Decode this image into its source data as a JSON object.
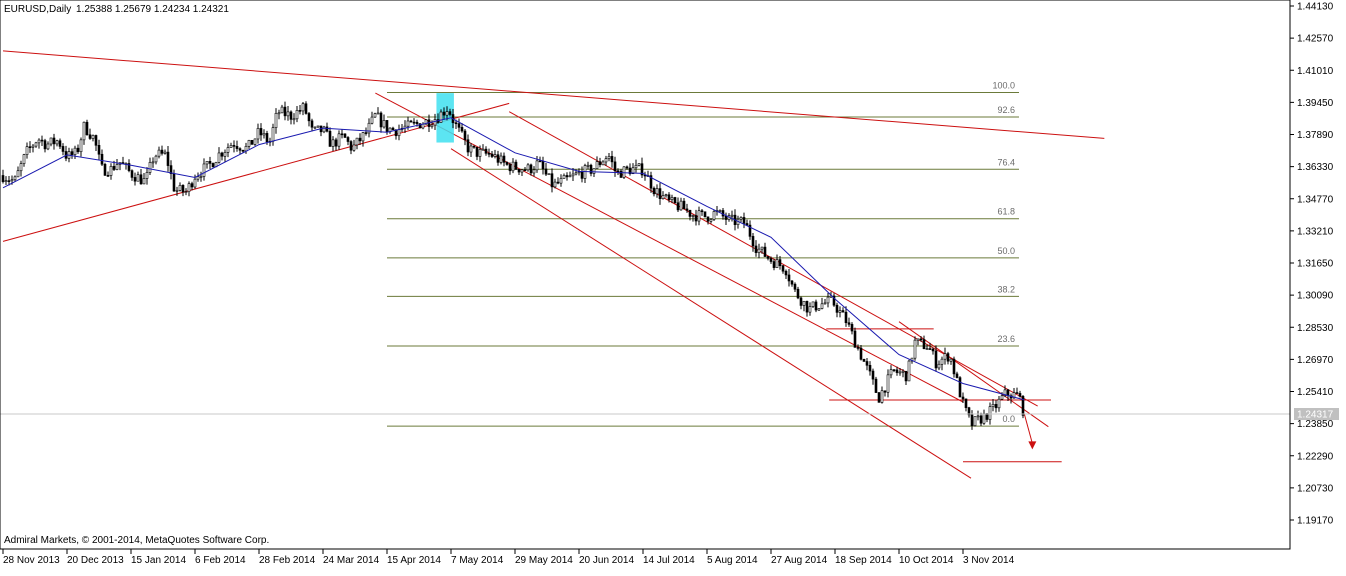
{
  "header": {
    "symbol_timeframe": "EURUSD,Daily",
    "ohlc": "1.25388 1.25679 1.24234 1.24321"
  },
  "footer": {
    "copyright": "Admiral Markets, © 2001-2014, MetaQuotes Software Corp."
  },
  "colors": {
    "background": "#ffffff",
    "frame": "#000000",
    "trendline": "#cc1010",
    "moving_average": "#1a1ab0",
    "fib_level": "#6b7a3a",
    "fib_text": "#6b6b6b",
    "highlight": "#40e0f0",
    "price_label_bg": "#c0c0c0"
  },
  "chart_data": {
    "type": "candlestick",
    "symbol": "EURUSD",
    "timeframe": "Daily",
    "ohlc_last": {
      "open": 1.25388,
      "high": 1.25679,
      "low": 1.24234,
      "close": 1.24321
    },
    "current_price_label": "1.24317",
    "ylim": [
      1.1917,
      1.4413
    ],
    "y_ticks": [
      "1.44130",
      "1.42570",
      "1.41010",
      "1.39450",
      "1.37890",
      "1.36330",
      "1.34770",
      "1.33210",
      "1.31650",
      "1.30090",
      "1.28530",
      "1.26970",
      "1.25410",
      "1.23850",
      "1.22290",
      "1.20730",
      "1.19170"
    ],
    "x_ticks": [
      "28 Nov 2013",
      "20 Dec 2013",
      "15 Jan 2014",
      "6 Feb 2014",
      "28 Feb 2014",
      "24 Mar 2014",
      "15 Apr 2014",
      "7 May 2014",
      "29 May 2014",
      "20 Jun 2014",
      "14 Jul 2014",
      "5 Aug 2014",
      "27 Aug 2014",
      "18 Sep 2014",
      "10 Oct 2014",
      "3 Nov 2014"
    ],
    "close_path": [
      [
        "28 Nov 2013",
        1.359
      ],
      [
        "2 Dec 2013",
        1.356
      ],
      [
        "6 Dec 2013",
        1.37
      ],
      [
        "10 Dec 2013",
        1.377
      ],
      [
        "13 Dec 2013",
        1.374
      ],
      [
        "17 Dec 2013",
        1.376
      ],
      [
        "20 Dec 2013",
        1.368
      ],
      [
        "24 Dec 2013",
        1.37
      ],
      [
        "27 Dec 2013",
        1.383
      ],
      [
        "31 Dec 2013",
        1.377
      ],
      [
        "3 Jan 2014",
        1.362
      ],
      [
        "7 Jan 2014",
        1.362
      ],
      [
        "10 Jan 2014",
        1.366
      ],
      [
        "15 Jan 2014",
        1.36
      ],
      [
        "20 Jan 2014",
        1.356
      ],
      [
        "23 Jan 2014",
        1.369
      ],
      [
        "27 Jan 2014",
        1.369
      ],
      [
        "30 Jan 2014",
        1.352
      ],
      [
        "3 Feb 2014",
        1.351
      ],
      [
        "6 Feb 2014",
        1.359
      ],
      [
        "11 Feb 2014",
        1.364
      ],
      [
        "14 Feb 2014",
        1.369
      ],
      [
        "19 Feb 2014",
        1.375
      ],
      [
        "24 Feb 2014",
        1.372
      ],
      [
        "28 Feb 2014",
        1.38
      ],
      [
        "4 Mar 2014",
        1.375
      ],
      [
        "7 Mar 2014",
        1.39
      ],
      [
        "12 Mar 2014",
        1.388
      ],
      [
        "17 Mar 2014",
        1.392
      ],
      [
        "20 Mar 2014",
        1.38
      ],
      [
        "24 Mar 2014",
        1.381
      ],
      [
        "27 Mar 2014",
        1.374
      ],
      [
        "31 Mar 2014",
        1.378
      ],
      [
        "3 Apr 2014",
        1.372
      ],
      [
        "8 Apr 2014",
        1.38
      ],
      [
        "11 Apr 2014",
        1.388
      ],
      [
        "15 Apr 2014",
        1.382
      ],
      [
        "18 Apr 2014",
        1.381
      ],
      [
        "23 Apr 2014",
        1.383
      ],
      [
        "28 Apr 2014",
        1.385
      ],
      [
        "2 May 2014",
        1.387
      ],
      [
        "6 May 2014",
        1.392
      ],
      [
        "8 May 2014",
        1.385
      ],
      [
        "13 May 2014",
        1.372
      ],
      [
        "16 May 2014",
        1.37
      ],
      [
        "21 May 2014",
        1.369
      ],
      [
        "26 May 2014",
        1.364
      ],
      [
        "29 May 2014",
        1.363
      ],
      [
        "3 Jun 2014",
        1.362
      ],
      [
        "6 Jun 2014",
        1.365
      ],
      [
        "11 Jun 2014",
        1.354
      ],
      [
        "16 Jun 2014",
        1.357
      ],
      [
        "20 Jun 2014",
        1.36
      ],
      [
        "25 Jun 2014",
        1.362
      ],
      [
        "1 Jul 2014",
        1.369
      ],
      [
        "4 Jul 2014",
        1.36
      ],
      [
        "9 Jul 2014",
        1.362
      ],
      [
        "14 Jul 2014",
        1.362
      ],
      [
        "18 Jul 2014",
        1.352
      ],
      [
        "23 Jul 2014",
        1.346
      ],
      [
        "28 Jul 2014",
        1.343
      ],
      [
        "31 Jul 2014",
        1.34
      ],
      [
        "5 Aug 2014",
        1.339
      ],
      [
        "8 Aug 2014",
        1.341
      ],
      [
        "13 Aug 2014",
        1.337
      ],
      [
        "18 Aug 2014",
        1.336
      ],
      [
        "22 Aug 2014",
        1.324
      ],
      [
        "27 Aug 2014",
        1.318
      ],
      [
        "1 Sep 2014",
        1.314
      ],
      [
        "4 Sep 2014",
        1.303
      ],
      [
        "9 Sep 2014",
        1.294
      ],
      [
        "12 Sep 2014",
        1.296
      ],
      [
        "17 Sep 2014",
        1.298
      ],
      [
        "22 Sep 2014",
        1.288
      ],
      [
        "25 Sep 2014",
        1.278
      ],
      [
        "30 Sep 2014",
        1.262
      ],
      [
        "3 Oct 2014",
        1.251
      ],
      [
        "8 Oct 2014",
        1.264
      ],
      [
        "13 Oct 2014",
        1.262
      ],
      [
        "16 Oct 2014",
        1.278
      ],
      [
        "21 Oct 2014",
        1.276
      ],
      [
        "24 Oct 2014",
        1.268
      ],
      [
        "29 Oct 2014",
        1.272
      ],
      [
        "3 Nov 2014",
        1.248
      ],
      [
        "6 Nov 2014",
        1.238
      ],
      [
        "11 Nov 2014",
        1.242
      ],
      [
        "14 Nov 2014",
        1.245
      ],
      [
        "19 Nov 2014",
        1.253
      ],
      [
        "24 Nov 2014",
        1.252
      ],
      [
        "26 Nov 2014",
        1.2432
      ]
    ],
    "moving_average_path": [
      [
        "28 Nov 2013",
        1.353
      ],
      [
        "20 Dec 2013",
        1.369
      ],
      [
        "15 Jan 2014",
        1.364
      ],
      [
        "6 Feb 2014",
        1.358
      ],
      [
        "28 Feb 2014",
        1.374
      ],
      [
        "24 Mar 2014",
        1.382
      ],
      [
        "15 Apr 2014",
        1.38
      ],
      [
        "7 May 2014",
        1.387
      ],
      [
        "29 May 2014",
        1.37
      ],
      [
        "20 Jun 2014",
        1.361
      ],
      [
        "14 Jul 2014",
        1.36
      ],
      [
        "5 Aug 2014",
        1.344
      ],
      [
        "27 Aug 2014",
        1.329
      ],
      [
        "18 Sep 2014",
        1.299
      ],
      [
        "10 Oct 2014",
        1.272
      ],
      [
        "3 Nov 2014",
        1.258
      ],
      [
        "26 Nov 2014",
        1.25
      ]
    ],
    "fibonacci": {
      "from": [
        "15 Apr 2014",
        1.399
      ],
      "to": [
        "24 Nov 2014",
        1.2357
      ],
      "levels": [
        {
          "label": "100.0",
          "price": 1.3993
        },
        {
          "label": "92.6",
          "price": 1.3874
        },
        {
          "label": "76.4",
          "price": 1.362
        },
        {
          "label": "61.8",
          "price": 1.338
        },
        {
          "label": "50.0",
          "price": 1.319
        },
        {
          "label": "38.2",
          "price": 1.3003
        },
        {
          "label": "23.6",
          "price": 1.2762
        },
        {
          "label": "0.0",
          "price": 1.2373
        }
      ]
    },
    "trendlines": [
      {
        "from": [
          "28 Nov 2013",
          1.4195
        ],
        "to": [
          "26 Dec 2014",
          1.377
        ]
      },
      {
        "from": [
          "28 Nov 2013",
          1.327
        ],
        "to": [
          "27 May 2014",
          1.394
        ]
      },
      {
        "from": [
          "11 Apr 2014",
          1.399
        ],
        "to": [
          "3 Nov 2014",
          1.249
        ]
      },
      {
        "from": [
          "7 May 2014",
          1.372
        ],
        "to": [
          "6 Nov 2014",
          1.212
        ]
      },
      {
        "from": [
          "27 May 2014",
          1.39
        ],
        "to": [
          "1 Dec 2014",
          1.247
        ]
      },
      {
        "from": [
          "10 Oct 2014",
          1.288
        ],
        "to": [
          "5 Dec 2014",
          1.237
        ]
      },
      {
        "from": [
          "15 Sep 2014",
          1.2845
        ],
        "to": [
          "23 Oct 2014",
          1.2845
        ]
      },
      {
        "from": [
          "16 Sep 2014",
          1.25
        ],
        "to": [
          "6 Dec 2014",
          1.25
        ]
      },
      {
        "from": [
          "3 Nov 2014",
          1.22
        ],
        "to": [
          "10 Dec 2014",
          1.22
        ]
      }
    ],
    "projection_arrow": {
      "from": [
        "26 Nov 2014",
        1.2432
      ],
      "to": [
        "29 Nov 2014",
        1.226
      ]
    },
    "highlight_region": {
      "from": "2 May 2014",
      "to": "8 May 2014",
      "price_high": 1.399,
      "price_low": 1.375
    },
    "title": "EURUSD,Daily"
  }
}
